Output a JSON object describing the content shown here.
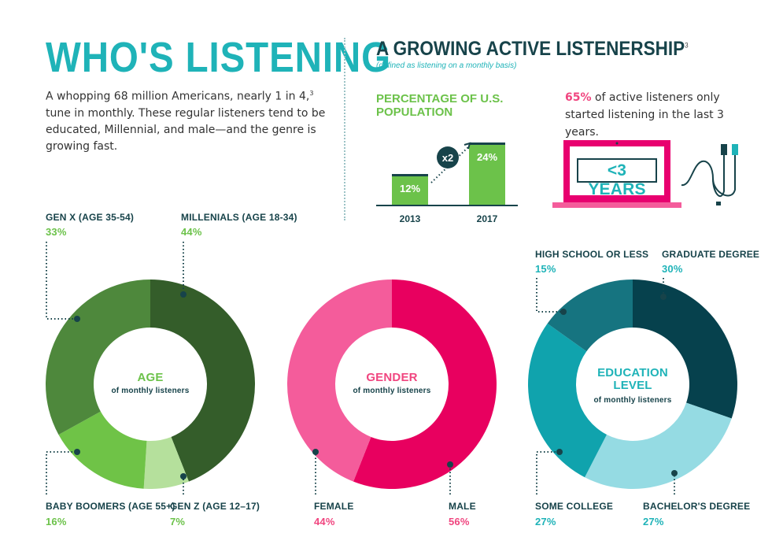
{
  "header": {
    "title": "WHO'S LISTENING",
    "intro_parts": [
      "A whopping 68 million Americans, nearly 1 in 4,",
      "3",
      " tune in monthly. These regular listeners tend to be educated, Millennial, and male—and the genre is growing fast."
    ]
  },
  "growth": {
    "title": "A GROWING ACTIVE LISTENERSHIP",
    "title_sup": "3",
    "subtitle": "(defined as listening on a monthly basis)",
    "pct_title": "PERCENTAGE OF U.S. POPULATION",
    "multiplier": "x2",
    "active_pct": "65%",
    "active_text": " of active listeners only started listening in the last 3 years.",
    "laptop_label": "<3 YEARS"
  },
  "chart_data": [
    {
      "type": "bar",
      "title": "PERCENTAGE OF U.S. POPULATION",
      "categories": [
        "2013",
        "2017"
      ],
      "values": [
        12,
        24
      ],
      "value_labels": [
        "12%",
        "24%"
      ],
      "color": "#6cc24a"
    },
    {
      "type": "pie",
      "title": "AGE",
      "subtitle": "of monthly listeners",
      "slices": [
        {
          "label": "MILLENIALS (AGE 18-34)",
          "pct_label": "44%",
          "value": 44,
          "color": "#345d2a"
        },
        {
          "label": "GEN Z (AGE 12–17)",
          "pct_label": "7%",
          "value": 7,
          "color": "#b5e09c"
        },
        {
          "label": "BABY BOOMERS (AGE 55+)",
          "pct_label": "16%",
          "value": 16,
          "color": "#6fc347"
        },
        {
          "label": "GEN X (AGE 35-54)",
          "pct_label": "33%",
          "value": 33,
          "color": "#4e883c"
        }
      ],
      "title_color": "#6cc24a",
      "pct_color": "#6cc24a"
    },
    {
      "type": "pie",
      "title": "GENDER",
      "subtitle": "of monthly listeners",
      "slices": [
        {
          "label": "MALE",
          "pct_label": "56%",
          "value": 56,
          "color": "#e8005f"
        },
        {
          "label": "FEMALE",
          "pct_label": "44%",
          "value": 44,
          "color": "#f45c9b"
        }
      ],
      "title_color": "#f0457f",
      "pct_color": "#f0457f"
    },
    {
      "type": "pie",
      "title": "EDUCATION LEVEL",
      "subtitle": "of monthly listeners",
      "slices": [
        {
          "label": "GRADUATE DEGREE",
          "pct_label": "30%",
          "value": 30,
          "color": "#06414d"
        },
        {
          "label": "BACHELOR'S DEGREE",
          "pct_label": "27%",
          "value": 27,
          "color": "#95dbe3"
        },
        {
          "label": "SOME COLLEGE",
          "pct_label": "27%",
          "value": 27,
          "color": "#10a3ad"
        },
        {
          "label": "HIGH SCHOOL OR LESS",
          "pct_label": "15%",
          "value": 15,
          "color": "#167480"
        }
      ],
      "title_color": "#1fb3b8",
      "pct_color": "#1fb3b8"
    }
  ]
}
